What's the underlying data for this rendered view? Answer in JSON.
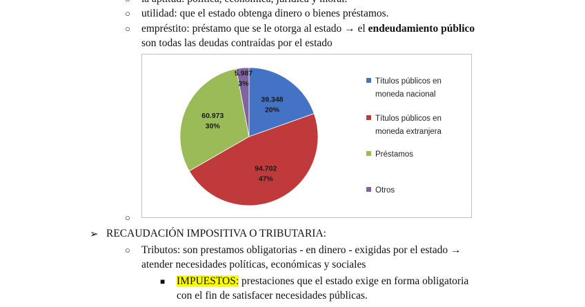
{
  "doc": {
    "line_top": "la aptitud: política, económica, jurídica y moral.",
    "line_utilidad": "utilidad: que el estado obtenga dinero o bienes préstamos.",
    "line_emprestito_a": "empréstito: préstamo que se le otorga al estado → el ",
    "line_emprestito_bold": "endeudamiento público",
    "line_emprestito_b": "son todas las deudas contraídas por el estado",
    "heading_recaudacion": "RECAUDACIÓN IMPOSITIVA O TRIBUTARIA:",
    "tributos_a": "Tributos: son prestamos obligatorias - en dinero - exigidas por el estado →",
    "tributos_b": "atender necesidades políticas, económicas y sociales",
    "impuestos_label": "IMPUESTOS:",
    "impuestos_a": " prestaciones que el estado exige en forma obligatoria",
    "impuestos_b": "con el fin de satisfacer necesidades públicas.",
    "bullet_circle": "○",
    "bullet_arrow": "➢",
    "bullet_square": "■"
  },
  "chart_data": {
    "type": "pie",
    "slices": [
      {
        "label": "Títulos públicos en moneda nacional",
        "label_lines": [
          "Títulos públicos en",
          "moneda nacional"
        ],
        "value": 39.348,
        "value_text": "39.348",
        "percent_text": "20%",
        "color": "#4472c4"
      },
      {
        "label": "Títulos públicos en moneda extranjera",
        "label_lines": [
          "Títulos públicos en",
          "moneda extranjera"
        ],
        "value": 94.702,
        "value_text": "94.702",
        "percent_text": "47%",
        "color": "#c0393b"
      },
      {
        "label": "Préstamos",
        "label_lines": [
          "Préstamos"
        ],
        "value": 60.973,
        "value_text": "60.973",
        "percent_text": "30%",
        "color": "#9bbb59"
      },
      {
        "label": "Otros",
        "label_lines": [
          "Otros"
        ],
        "value": 5.987,
        "value_text": "5.987",
        "percent_text": "3%",
        "color": "#8064a2"
      }
    ],
    "legend_position": "right"
  }
}
